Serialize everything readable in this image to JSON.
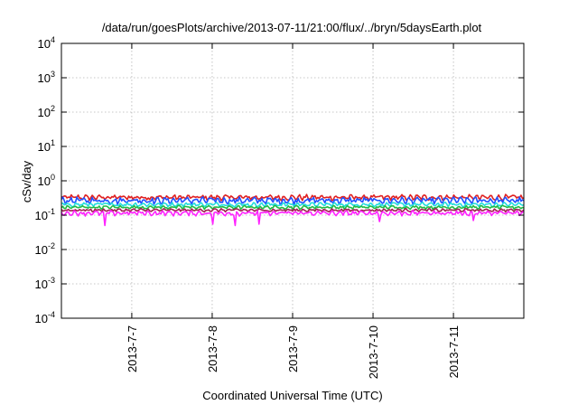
{
  "chart_data": {
    "type": "line",
    "title": "/data/run/goesPlots/archive/2013-07-11/21:00/flux/../bryn/5daysEarth.plot",
    "xlabel": "Coordinated Universal Time (UTC)",
    "ylabel": "cSv/day",
    "y_scale": "log",
    "ylim": [
      0.0001,
      10000
    ],
    "y_ticks": [
      {
        "value": 0.0001,
        "base": "10",
        "exp": "-4"
      },
      {
        "value": 0.001,
        "base": "10",
        "exp": "-3"
      },
      {
        "value": 0.01,
        "base": "10",
        "exp": "-2"
      },
      {
        "value": 0.1,
        "base": "10",
        "exp": "-1"
      },
      {
        "value": 1,
        "base": "10",
        "exp": "0"
      },
      {
        "value": 10,
        "base": "10",
        "exp": "1"
      },
      {
        "value": 100,
        "base": "10",
        "exp": "2"
      },
      {
        "value": 1000,
        "base": "10",
        "exp": "3"
      },
      {
        "value": 10000,
        "base": "10",
        "exp": "4"
      }
    ],
    "xlim": [
      "2013-07-06 03:00",
      "2013-07-11 21:00"
    ],
    "x_ticks": [
      {
        "value": "2013-07-07 00:00",
        "label": "2013-7-7"
      },
      {
        "value": "2013-07-08 00:00",
        "label": "2013-7-8"
      },
      {
        "value": "2013-07-09 00:00",
        "label": "2013-7-9"
      },
      {
        "value": "2013-07-10 00:00",
        "label": "2013-7-10"
      },
      {
        "value": "2013-07-11 00:00",
        "label": "2013-7-11"
      }
    ],
    "grid": true,
    "legend": "none",
    "series": [
      {
        "color": "#e02020",
        "level": 0.33,
        "spread": 0.16,
        "dips": []
      },
      {
        "color": "#2050ff",
        "level": 0.27,
        "spread": 0.2,
        "dips": []
      },
      {
        "color": "#22dddd",
        "level": 0.205,
        "spread": 0.12,
        "dips": []
      },
      {
        "color": "#22bb44",
        "level": 0.17,
        "spread": 0.1,
        "dips": []
      },
      {
        "color": "#a02050",
        "level": 0.14,
        "spread": 0.09,
        "dips": []
      },
      {
        "color": "#ff22ff",
        "level": 0.115,
        "spread": 0.14,
        "dips": [
          {
            "x": "2013-07-06 16:00",
            "y": 0.05
          },
          {
            "x": "2013-07-08 00:00",
            "y": 0.055
          },
          {
            "x": "2013-07-08 07:00",
            "y": 0.05
          },
          {
            "x": "2013-07-08 14:00",
            "y": 0.055
          },
          {
            "x": "2013-07-10 02:00",
            "y": 0.065
          },
          {
            "x": "2013-07-11 06:00",
            "y": 0.07
          }
        ]
      }
    ]
  }
}
